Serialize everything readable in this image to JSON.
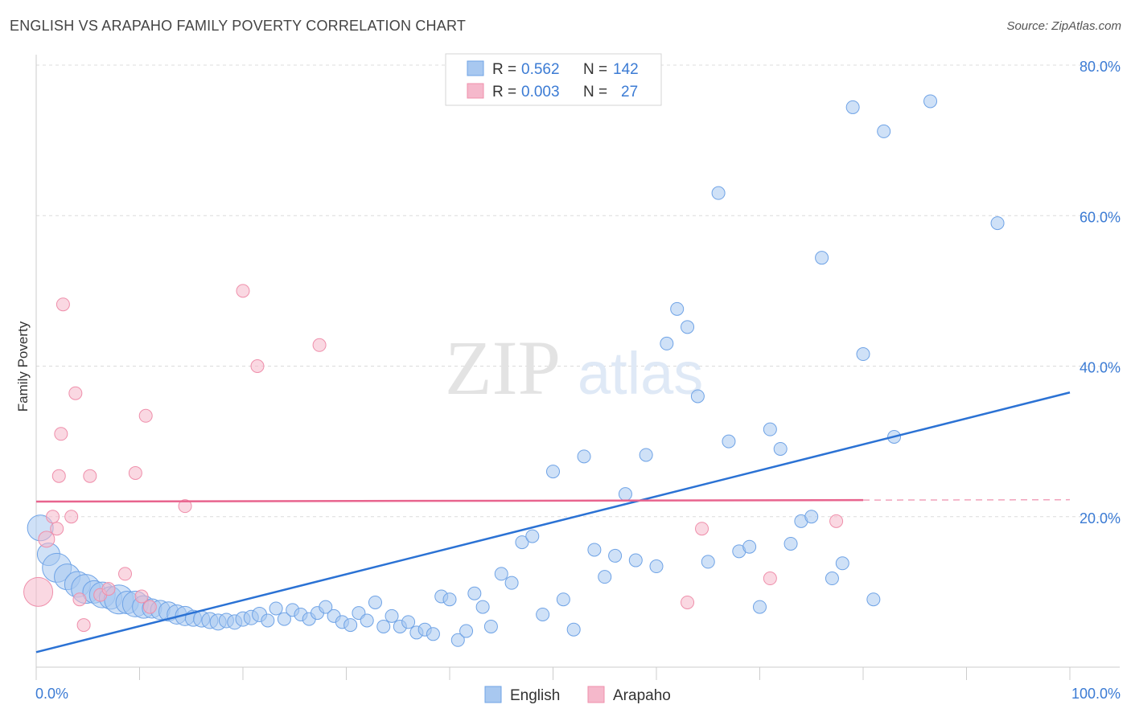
{
  "header": {
    "title": "ENGLISH VS ARAPAHO FAMILY POVERTY CORRELATION CHART",
    "source": "Source: ZipAtlas.com"
  },
  "watermark": {
    "zip": "ZIP",
    "atlas": "atlas"
  },
  "legend": {
    "rows": [
      {
        "r_label": "R =",
        "r_value": "0.562",
        "n_label": "N =",
        "n_value": "142",
        "color": "#a8c8f0"
      },
      {
        "r_label": "R =",
        "r_value": "0.003",
        "n_label": "N =",
        "n_value": "27",
        "color": "#f5b8cb"
      }
    ]
  },
  "chart_data": {
    "type": "scatter",
    "ylabel": "Family Poverty",
    "xlim": [
      0,
      100
    ],
    "ylim": [
      0,
      80
    ],
    "x_tick_labels": [
      "0.0%",
      "100.0%"
    ],
    "y_ticks": [
      {
        "value": 20,
        "label": "20.0%"
      },
      {
        "value": 40,
        "label": "40.0%"
      },
      {
        "value": 60,
        "label": "60.0%"
      },
      {
        "value": 80,
        "label": "80.0%"
      }
    ],
    "grid": true,
    "legend_position": "bottom",
    "series": [
      {
        "name": "English",
        "color": "#6fa3e6",
        "fill": "#a8c8f0",
        "trend": {
          "x": [
            0,
            100
          ],
          "y": [
            2.0,
            36.5
          ],
          "color": "#2b72d4"
        },
        "points": [
          [
            0.4,
            18.5,
            16
          ],
          [
            1.2,
            15.0,
            14
          ],
          [
            2.0,
            13.2,
            18
          ],
          [
            3.0,
            12.0,
            16
          ],
          [
            4.0,
            11.0,
            16
          ],
          [
            4.8,
            10.4,
            18
          ],
          [
            5.6,
            10.0,
            14
          ],
          [
            6.4,
            9.6,
            16
          ],
          [
            7.2,
            9.2,
            14
          ],
          [
            8.0,
            9.0,
            18
          ],
          [
            8.8,
            8.6,
            14
          ],
          [
            9.6,
            8.4,
            16
          ],
          [
            10.4,
            8.0,
            14
          ],
          [
            11.2,
            7.8,
            12
          ],
          [
            12.0,
            7.6,
            12
          ],
          [
            12.8,
            7.4,
            12
          ],
          [
            13.6,
            7.0,
            12
          ],
          [
            14.4,
            6.8,
            12
          ],
          [
            15.2,
            6.5,
            10
          ],
          [
            16.0,
            6.4,
            10
          ],
          [
            16.8,
            6.2,
            10
          ],
          [
            17.6,
            6.0,
            10
          ],
          [
            18.4,
            6.2,
            9
          ],
          [
            19.2,
            6.0,
            9
          ],
          [
            20.0,
            6.4,
            9
          ],
          [
            20.8,
            6.6,
            9
          ],
          [
            21.6,
            7.0,
            9
          ],
          [
            22.4,
            6.2,
            8
          ],
          [
            23.2,
            7.8,
            8
          ],
          [
            24.0,
            6.4,
            8
          ],
          [
            24.8,
            7.6,
            8
          ],
          [
            25.6,
            7.0,
            8
          ],
          [
            26.4,
            6.4,
            8
          ],
          [
            27.2,
            7.2,
            8
          ],
          [
            28.0,
            8.0,
            8
          ],
          [
            28.8,
            6.8,
            8
          ],
          [
            29.6,
            6.0,
            8
          ],
          [
            30.4,
            5.6,
            8
          ],
          [
            31.2,
            7.2,
            8
          ],
          [
            32.0,
            6.2,
            8
          ],
          [
            32.8,
            8.6,
            8
          ],
          [
            33.6,
            5.4,
            8
          ],
          [
            34.4,
            6.8,
            8
          ],
          [
            35.2,
            5.4,
            8
          ],
          [
            36.0,
            6.0,
            8
          ],
          [
            36.8,
            4.6,
            8
          ],
          [
            37.6,
            5.0,
            8
          ],
          [
            38.4,
            4.4,
            8
          ],
          [
            39.2,
            9.4,
            8
          ],
          [
            40.0,
            9.0,
            8
          ],
          [
            40.8,
            3.6,
            8
          ],
          [
            41.6,
            4.8,
            8
          ],
          [
            42.4,
            9.8,
            8
          ],
          [
            43.2,
            8.0,
            8
          ],
          [
            44.0,
            5.4,
            8
          ],
          [
            45.0,
            12.4,
            8
          ],
          [
            46.0,
            11.2,
            8
          ],
          [
            47.0,
            16.6,
            8
          ],
          [
            48.0,
            17.4,
            8
          ],
          [
            49.0,
            7.0,
            8
          ],
          [
            50.0,
            26.0,
            8
          ],
          [
            51.0,
            9.0,
            8
          ],
          [
            52.0,
            5.0,
            8
          ],
          [
            53.0,
            28.0,
            8
          ],
          [
            54.0,
            15.6,
            8
          ],
          [
            55.0,
            12.0,
            8
          ],
          [
            56.0,
            14.8,
            8
          ],
          [
            57.0,
            23.0,
            8
          ],
          [
            58.0,
            14.2,
            8
          ],
          [
            59.0,
            28.2,
            8
          ],
          [
            60.0,
            13.4,
            8
          ],
          [
            61.0,
            43.0,
            8
          ],
          [
            62.0,
            47.6,
            8
          ],
          [
            63.0,
            45.2,
            8
          ],
          [
            64.0,
            36.0,
            8
          ],
          [
            65.0,
            14.0,
            8
          ],
          [
            66.0,
            63.0,
            8
          ],
          [
            67.0,
            30.0,
            8
          ],
          [
            68.0,
            15.4,
            8
          ],
          [
            69.0,
            16.0,
            8
          ],
          [
            70.0,
            8.0,
            8
          ],
          [
            71.0,
            31.6,
            8
          ],
          [
            72.0,
            29.0,
            8
          ],
          [
            73.0,
            16.4,
            8
          ],
          [
            74.0,
            19.4,
            8
          ],
          [
            75.0,
            20.0,
            8
          ],
          [
            76.0,
            54.4,
            8
          ],
          [
            77.0,
            11.8,
            8
          ],
          [
            78.0,
            13.8,
            8
          ],
          [
            79.0,
            74.4,
            8
          ],
          [
            80.0,
            41.6,
            8
          ],
          [
            81.0,
            9.0,
            8
          ],
          [
            82.0,
            71.2,
            8
          ],
          [
            83.0,
            30.6,
            8
          ],
          [
            86.5,
            75.2,
            8
          ],
          [
            93.0,
            59.0,
            8
          ]
        ]
      },
      {
        "name": "Arapaho",
        "color": "#ef8fab",
        "fill": "#f5b8cb",
        "trend": {
          "x": [
            0,
            80
          ],
          "y": [
            22.0,
            22.2
          ],
          "dashed_to": 100,
          "color": "#e8648e"
        },
        "points": [
          [
            0.2,
            10.0,
            18
          ],
          [
            1.0,
            17.0,
            10
          ],
          [
            1.6,
            20.0,
            8
          ],
          [
            2.0,
            18.4,
            8
          ],
          [
            2.2,
            25.4,
            8
          ],
          [
            2.4,
            31.0,
            8
          ],
          [
            2.6,
            48.2,
            8
          ],
          [
            3.4,
            20.0,
            8
          ],
          [
            3.8,
            36.4,
            8
          ],
          [
            4.2,
            9.0,
            8
          ],
          [
            4.6,
            5.6,
            8
          ],
          [
            5.2,
            25.4,
            8
          ],
          [
            6.2,
            9.6,
            8
          ],
          [
            7.0,
            10.4,
            8
          ],
          [
            8.6,
            12.4,
            8
          ],
          [
            9.6,
            25.8,
            8
          ],
          [
            10.2,
            9.4,
            8
          ],
          [
            10.6,
            33.4,
            8
          ],
          [
            11.0,
            8.0,
            8
          ],
          [
            14.4,
            21.4,
            8
          ],
          [
            20.0,
            50.0,
            8
          ],
          [
            21.4,
            40.0,
            8
          ],
          [
            27.4,
            42.8,
            8
          ],
          [
            63.0,
            8.6,
            8
          ],
          [
            64.4,
            18.4,
            8
          ],
          [
            71.0,
            11.8,
            8
          ],
          [
            77.4,
            19.4,
            8
          ]
        ]
      }
    ]
  },
  "bottom_legend": {
    "items": [
      {
        "label": "English",
        "color": "#a8c8f0"
      },
      {
        "label": "Arapaho",
        "color": "#f5b8cb"
      }
    ]
  }
}
